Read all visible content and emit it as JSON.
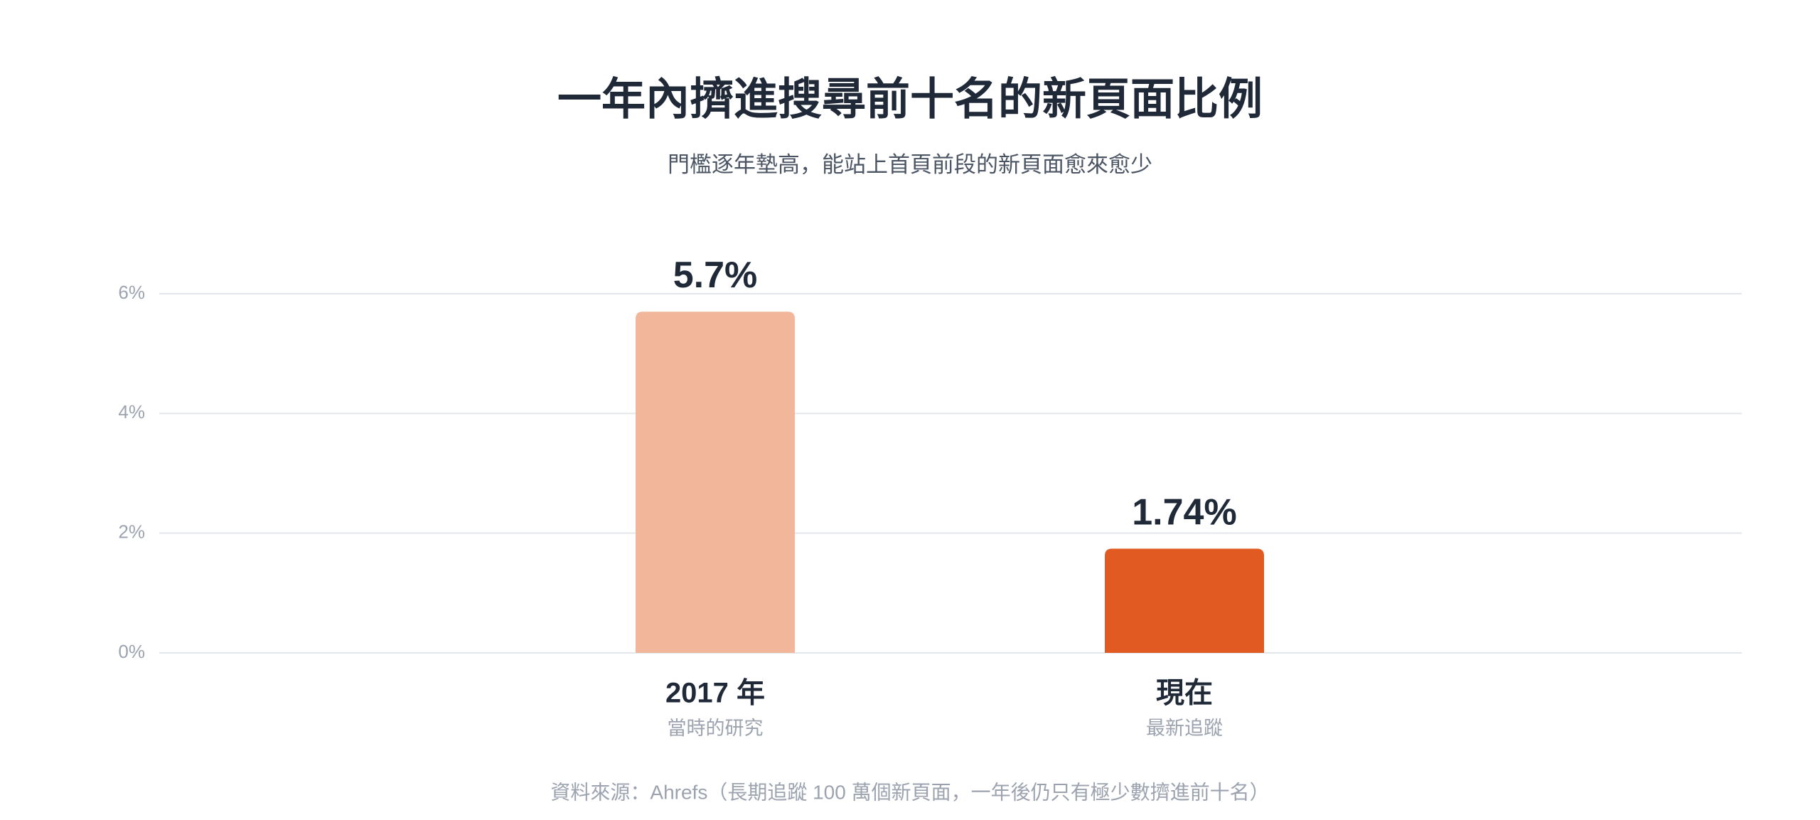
{
  "chart_data": {
    "type": "bar",
    "title": "一年內擠進搜尋前十名的新頁面比例",
    "subtitle": "門檻逐年墊高，能站上首頁前段的新頁面愈來愈少",
    "categories": [
      "2017 年",
      "現在"
    ],
    "category_sublabels": [
      "當時的研究",
      "最新追蹤"
    ],
    "values": [
      5.7,
      1.74
    ],
    "value_labels": [
      "5.7%",
      "1.74%"
    ],
    "colors": [
      "#f2b79b",
      "#e05a22"
    ],
    "ylim": [
      0,
      6
    ],
    "yticks": [
      {
        "value": 0,
        "label": "0%"
      },
      {
        "value": 2,
        "label": "2%"
      },
      {
        "value": 4,
        "label": "4%"
      },
      {
        "value": 6,
        "label": "6%"
      }
    ],
    "grid": true,
    "source": "資料來源：Ahrefs（長期追蹤 100 萬個新頁面，一年後仍只有極少數擠進前十名）"
  }
}
